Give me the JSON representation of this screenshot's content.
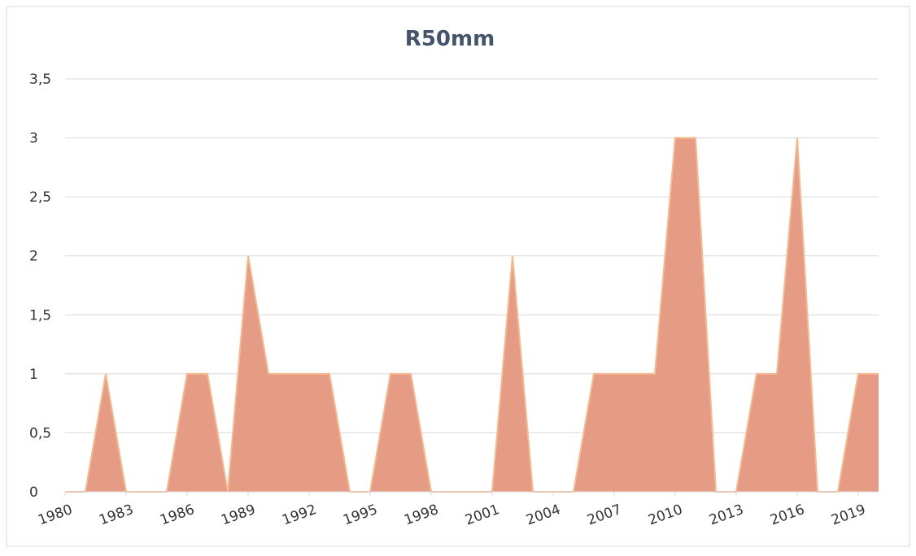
{
  "chart_data": {
    "type": "area",
    "title": "R50mm",
    "x": [
      1980,
      1981,
      1982,
      1983,
      1984,
      1985,
      1986,
      1987,
      1988,
      1989,
      1990,
      1991,
      1992,
      1993,
      1994,
      1995,
      1996,
      1997,
      1998,
      1999,
      2000,
      2001,
      2002,
      2003,
      2004,
      2005,
      2006,
      2007,
      2008,
      2009,
      2010,
      2011,
      2012,
      2013,
      2014,
      2015,
      2016,
      2017,
      2018,
      2019,
      2020
    ],
    "series": [
      {
        "color": "#e59b84",
        "values": [
          0,
          0,
          1,
          0,
          0,
          0,
          1,
          1,
          0,
          2,
          1,
          1,
          1,
          1,
          0,
          0,
          1,
          1,
          0,
          0,
          0,
          0,
          2,
          0,
          0,
          0,
          1,
          1,
          1,
          1,
          3,
          3,
          0,
          0,
          1,
          1,
          3,
          0,
          0,
          1,
          1
        ]
      }
    ],
    "xlim": [
      1980,
      2020
    ],
    "xticks": [
      1980,
      1983,
      1986,
      1989,
      1992,
      1995,
      1998,
      2001,
      2004,
      2007,
      2010,
      2013,
      2016,
      2019
    ],
    "ylim": [
      0,
      3.5
    ],
    "yticks": [
      0,
      {
        "value": 0.5,
        "label": "0,5"
      },
      1,
      {
        "value": 1.5,
        "label": "1,5"
      },
      2,
      {
        "value": 2.5,
        "label": "2,5"
      },
      3,
      {
        "value": 3.5,
        "label": "3,5"
      }
    ],
    "grid": true
  }
}
